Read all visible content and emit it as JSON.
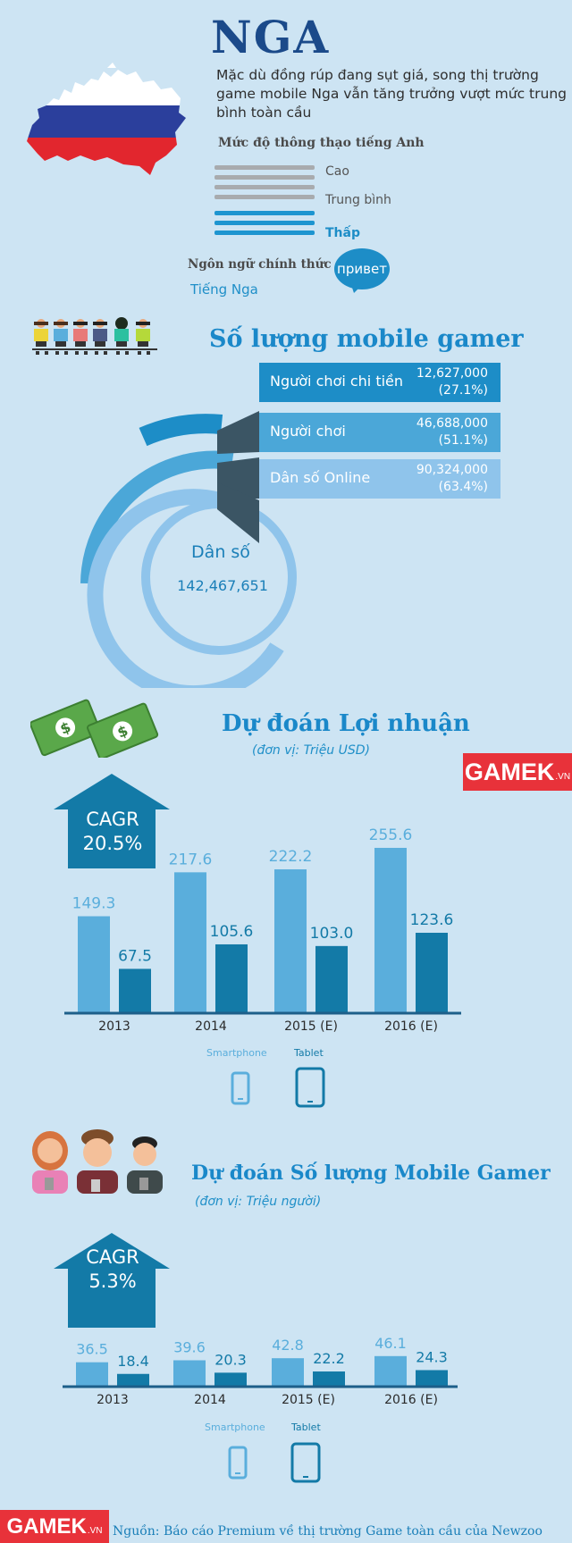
{
  "header": {
    "title": "NGA",
    "intro": "Mặc dù đồng rúp đang sụt giá, song thị trường game mobile Nga vẫn tăng trưởng vượt mức trung bình toàn cầu"
  },
  "english": {
    "title": "Mức độ thông thạo tiếng Anh",
    "levels": [
      "Cao",
      "Trung bình",
      "Thấp"
    ],
    "selected": "Thấp"
  },
  "language": {
    "title": "Ngôn ngữ chính thức",
    "value": "Tiếng Nga",
    "bubble": "привет"
  },
  "gamers": {
    "title": "Số lượng mobile gamer",
    "rows": [
      {
        "label": "Người chơi chi tiền",
        "value": "12,627,000",
        "pct": "(27.1%)"
      },
      {
        "label": "Người chơi",
        "value": "46,688,000",
        "pct": "(51.1%)"
      },
      {
        "label": "Dân số Online",
        "value": "90,324,000",
        "pct": "(63.4%)"
      }
    ],
    "population_label": "Dân số",
    "population_value": "142,467,651"
  },
  "watermark": {
    "brand": "GAMEK",
    "suffix": ".VN"
  },
  "footer": {
    "source": "Nguồn: Báo cáo Premium về thị trường Game toàn cầu của Newzoo"
  },
  "colors": {
    "smartphone": "#5aaedc",
    "tablet": "#137aa7",
    "dark_blue": "#1d5f8a",
    "accent": "#1a88c9",
    "brand_red": "#e8323a"
  },
  "chart_data": [
    {
      "type": "bar",
      "title": "Dự đoán Lợi nhuận",
      "subtitle": "(đơn vị: Triệu USD)",
      "categories": [
        "2013",
        "2014",
        "2015 (E)",
        "2016 (E)"
      ],
      "series": [
        {
          "name": "Smartphone",
          "values": [
            149.3,
            217.6,
            222.2,
            255.6
          ]
        },
        {
          "name": "Tablet",
          "values": [
            67.5,
            105.6,
            103.0,
            123.6
          ]
        }
      ],
      "value_labels": [
        [
          "149.3",
          "217.6",
          "222.2",
          "255.6"
        ],
        [
          "67.5",
          "105.6",
          "103.0",
          "123.6"
        ]
      ],
      "cagr": {
        "label": "CAGR",
        "value": "20.5%"
      },
      "ylim": [
        0,
        260
      ]
    },
    {
      "type": "bar",
      "title": "Dự đoán Số lượng Mobile Gamer",
      "subtitle": "(đơn vị: Triệu người)",
      "categories": [
        "2013",
        "2014",
        "2015 (E)",
        "2016 (E)"
      ],
      "series": [
        {
          "name": "Smartphone",
          "values": [
            36.5,
            39.6,
            42.8,
            46.1
          ]
        },
        {
          "name": "Tablet",
          "values": [
            18.4,
            20.3,
            22.2,
            24.3
          ]
        }
      ],
      "value_labels": [
        [
          "36.5",
          "39.6",
          "42.8",
          "46.1"
        ],
        [
          "18.4",
          "20.3",
          "22.2",
          "24.3"
        ]
      ],
      "cagr": {
        "label": "CAGR",
        "value": "5.3%"
      },
      "ylim": [
        0,
        260
      ]
    }
  ]
}
